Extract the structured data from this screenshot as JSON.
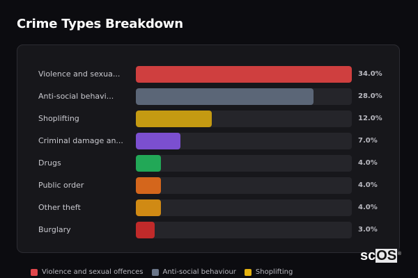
{
  "header": {
    "title": "Crime Types Breakdown"
  },
  "rows": [
    {
      "label": "Violence and sexua...",
      "pct": "34.0%",
      "value": 34.0,
      "color": "#cf3f3f"
    },
    {
      "label": "Anti-social behavi...",
      "pct": "28.0%",
      "value": 28.0,
      "color": "#5b6677"
    },
    {
      "label": "Shoplifting",
      "pct": "12.0%",
      "value": 12.0,
      "color": "#c49a12"
    },
    {
      "label": "Criminal damage an...",
      "pct": "7.0%",
      "value": 7.0,
      "color": "#7b4fd0"
    },
    {
      "label": "Drugs",
      "pct": "4.0%",
      "value": 4.0,
      "color": "#22a857"
    },
    {
      "label": "Public order",
      "pct": "4.0%",
      "value": 4.0,
      "color": "#d4661c"
    },
    {
      "label": "Other theft",
      "pct": "4.0%",
      "value": 4.0,
      "color": "#d08a14"
    },
    {
      "label": "Burglary",
      "pct": "3.0%",
      "value": 3.0,
      "color": "#c02a2a"
    }
  ],
  "legend": [
    {
      "label": "Violence and sexual offences",
      "color": "#e0474c"
    },
    {
      "label": "Anti-social behaviour",
      "color": "#6b7689"
    },
    {
      "label": "Shoplifting",
      "color": "#e5b20f"
    }
  ],
  "logo": {
    "sc": "sc",
    "os": "OS",
    "reg": "®"
  },
  "chart_data": {
    "type": "bar",
    "orientation": "horizontal",
    "title": "Crime Types Breakdown",
    "categories": [
      "Violence and sexual offences",
      "Anti-social behaviour",
      "Shoplifting",
      "Criminal damage and arson",
      "Drugs",
      "Public order",
      "Other theft",
      "Burglary"
    ],
    "values": [
      34.0,
      28.0,
      12.0,
      7.0,
      4.0,
      4.0,
      4.0,
      3.0
    ],
    "unit": "%",
    "xlabel": "",
    "ylabel": "",
    "xlim": [
      0,
      34
    ],
    "grid": false,
    "legend_position": "bottom"
  }
}
